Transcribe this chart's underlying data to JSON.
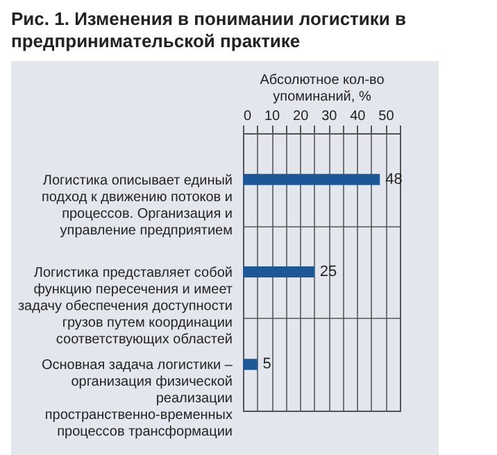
{
  "chart_data": {
    "type": "bar",
    "orientation": "horizontal",
    "title": "Рис. 1. Изменения в понимании логистики в предпринимательской практике",
    "xlabel": "Абсолютное кол-во упоминаний, %",
    "categories": [
      "Логистика описывает единый подход к движению потоков и процессов. Организация и управление предприятием",
      "Логистика представляет собой функцию пересечения и имеет задачу обеспечения доступности грузов путем координации соответствующих областей",
      "Основная задача логистики – организация физической реализации пространственно-временных процессов трансформации"
    ],
    "values": [
      48,
      25,
      5
    ],
    "color": "#1d5797",
    "xlim": [
      0,
      55
    ],
    "xticks": [
      0,
      {
        "value": 5,
        "label": null
      },
      10,
      {
        "value": 15,
        "label": null
      },
      20,
      {
        "value": 25,
        "label": null
      },
      30,
      {
        "value": 35,
        "label": null
      },
      40,
      {
        "value": 45,
        "label": null
      },
      50,
      {
        "value": 55,
        "label": null
      }
    ],
    "grid": true,
    "data_labels": true
  }
}
